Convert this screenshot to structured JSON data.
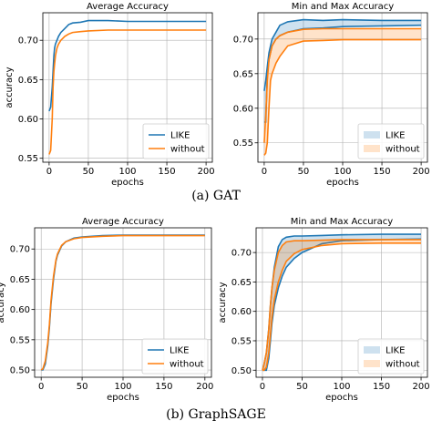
{
  "colors": {
    "like": "#1f77b4",
    "without": "#ff7f0e",
    "grid": "#b0b0b0"
  },
  "chart_data": [
    {
      "id": "gat-avg",
      "type": "line",
      "title": "Average Accuracy",
      "xlabel": "epochs",
      "ylabel": "accuracy",
      "xlim": [
        -8,
        208
      ],
      "ylim": [
        0.545,
        0.735
      ],
      "xticks": [
        0,
        50,
        100,
        150,
        200
      ],
      "yticks": [
        0.55,
        0.6,
        0.65,
        0.7
      ],
      "grid": true,
      "legend": "lower-right",
      "band": false,
      "x": [
        0,
        2,
        4,
        5,
        6,
        7,
        8,
        10,
        12,
        15,
        20,
        25,
        30,
        40,
        50,
        75,
        100,
        150,
        200
      ],
      "series": [
        {
          "name": "LIKE",
          "color_key": "like",
          "values": [
            0.61,
            0.615,
            0.64,
            0.66,
            0.68,
            0.69,
            0.695,
            0.7,
            0.705,
            0.71,
            0.715,
            0.72,
            0.722,
            0.723,
            0.725,
            0.725,
            0.724,
            0.724,
            0.724
          ]
        },
        {
          "name": "without",
          "color_key": "without",
          "values": [
            0.555,
            0.56,
            0.6,
            0.64,
            0.66,
            0.67,
            0.68,
            0.69,
            0.695,
            0.7,
            0.705,
            0.708,
            0.71,
            0.711,
            0.712,
            0.713,
            0.713,
            0.713,
            0.713
          ]
        }
      ]
    },
    {
      "id": "gat-minmax",
      "type": "area",
      "title": "Min and Max Accuracy",
      "xlabel": "epochs",
      "ylabel": "",
      "xlim": [
        -8,
        208
      ],
      "ylim": [
        0.522,
        0.738
      ],
      "xticks": [
        0,
        50,
        100,
        150,
        200
      ],
      "yticks": [
        0.55,
        0.6,
        0.65,
        0.7
      ],
      "grid": true,
      "legend": "lower-right",
      "band": true,
      "x": [
        0,
        2,
        4,
        6,
        8,
        10,
        15,
        20,
        30,
        50,
        75,
        100,
        150,
        200
      ],
      "series": [
        {
          "name": "LIKE",
          "color_key": "like",
          "lower": [
            0.58,
            0.58,
            0.65,
            0.67,
            0.68,
            0.69,
            0.7,
            0.705,
            0.71,
            0.715,
            0.716,
            0.718,
            0.719,
            0.72
          ],
          "upper": [
            0.625,
            0.64,
            0.66,
            0.68,
            0.69,
            0.7,
            0.71,
            0.72,
            0.725,
            0.728,
            0.727,
            0.728,
            0.727,
            0.727
          ]
        },
        {
          "name": "without",
          "color_key": "without",
          "lower": [
            0.532,
            0.535,
            0.55,
            0.6,
            0.64,
            0.65,
            0.665,
            0.675,
            0.69,
            0.697,
            0.698,
            0.699,
            0.699,
            0.699
          ],
          "upper": [
            0.55,
            0.59,
            0.64,
            0.67,
            0.68,
            0.69,
            0.7,
            0.705,
            0.71,
            0.714,
            0.715,
            0.715,
            0.715,
            0.715
          ]
        }
      ]
    },
    {
      "id": "sage-avg",
      "type": "line",
      "title": "Average Accuracy",
      "xlabel": "epochs",
      "ylabel": "accuracy",
      "xlim": [
        -8,
        208
      ],
      "ylim": [
        0.488,
        0.735
      ],
      "xticks": [
        0,
        50,
        100,
        150,
        200
      ],
      "yticks": [
        0.5,
        0.55,
        0.6,
        0.65,
        0.7
      ],
      "grid": true,
      "legend": "lower-right",
      "band": false,
      "x": [
        0,
        2,
        5,
        8,
        10,
        12,
        15,
        18,
        20,
        25,
        30,
        40,
        50,
        75,
        100,
        150,
        200
      ],
      "series": [
        {
          "name": "LIKE",
          "color_key": "like",
          "values": [
            0.5,
            0.5,
            0.51,
            0.54,
            0.57,
            0.61,
            0.65,
            0.68,
            0.69,
            0.705,
            0.712,
            0.718,
            0.72,
            0.722,
            0.723,
            0.723,
            0.723
          ]
        },
        {
          "name": "without",
          "color_key": "without",
          "values": [
            0.5,
            0.502,
            0.515,
            0.545,
            0.575,
            0.615,
            0.655,
            0.682,
            0.692,
            0.706,
            0.712,
            0.717,
            0.719,
            0.721,
            0.722,
            0.722,
            0.722
          ]
        }
      ]
    },
    {
      "id": "sage-minmax",
      "type": "area",
      "title": "Min and Max Accuracy",
      "xlabel": "epochs",
      "ylabel": "accuracy",
      "xlim": [
        -8,
        208
      ],
      "ylim": [
        0.488,
        0.742
      ],
      "xticks": [
        0,
        50,
        100,
        150,
        200
      ],
      "yticks": [
        0.5,
        0.55,
        0.6,
        0.65,
        0.7
      ],
      "grid": true,
      "legend": "lower-right",
      "band": true,
      "x": [
        0,
        2,
        5,
        8,
        10,
        12,
        15,
        20,
        25,
        30,
        40,
        50,
        75,
        100,
        150,
        200
      ],
      "series": [
        {
          "name": "LIKE",
          "color_key": "like",
          "lower": [
            0.5,
            0.5,
            0.5,
            0.52,
            0.55,
            0.58,
            0.61,
            0.64,
            0.66,
            0.675,
            0.69,
            0.7,
            0.715,
            0.72,
            0.722,
            0.723
          ],
          "upper": [
            0.5,
            0.51,
            0.53,
            0.57,
            0.61,
            0.64,
            0.675,
            0.71,
            0.722,
            0.726,
            0.728,
            0.728,
            0.729,
            0.73,
            0.731,
            0.731
          ]
        },
        {
          "name": "without",
          "color_key": "without",
          "lower": [
            0.5,
            0.5,
            0.505,
            0.53,
            0.56,
            0.59,
            0.62,
            0.65,
            0.67,
            0.685,
            0.698,
            0.705,
            0.712,
            0.715,
            0.716,
            0.716
          ],
          "upper": [
            0.5,
            0.51,
            0.53,
            0.57,
            0.61,
            0.64,
            0.67,
            0.7,
            0.712,
            0.718,
            0.72,
            0.72,
            0.721,
            0.722,
            0.722,
            0.722
          ]
        }
      ]
    }
  ],
  "captions": {
    "a": "(a) GAT",
    "b": "(b) GraphSAGE"
  }
}
